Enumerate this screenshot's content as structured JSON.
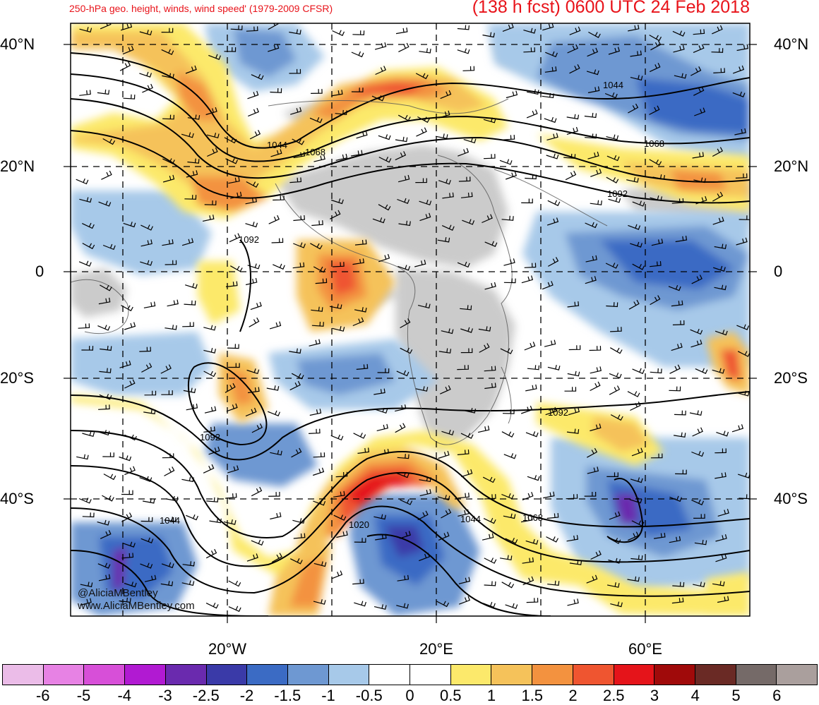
{
  "title": {
    "left": "250-hPa geo. height, winds, wind speed' (1979-2009 CFSR)",
    "right": "(138 h fcst) 0600 UTC 24 Feb 2018"
  },
  "latitude_labels": [
    "40°N",
    "20°N",
    "0",
    "20°S",
    "40°S"
  ],
  "longitude_labels": [
    "20°W",
    "20°E",
    "60°E"
  ],
  "contour_labels": [
    "1044",
    "1068",
    "1044",
    "1068",
    "1092",
    "1092",
    "1092",
    "1092",
    "1044",
    "1020",
    "1044",
    "1068"
  ],
  "watermark": [
    "@AliciaMBentley",
    "www.AliciaMBentley.com"
  ],
  "colorbar": {
    "labels": [
      "-6",
      "-5",
      "-4",
      "-3",
      "-2.5",
      "-2",
      "-1.5",
      "-1",
      "-0.5",
      "0",
      "0.5",
      "1",
      "1.5",
      "2",
      "2.5",
      "3",
      "4",
      "5",
      "6"
    ],
    "colors": [
      "#ebbce8",
      "#e782e4",
      "#d74fd8",
      "#b11ad2",
      "#6a2aae",
      "#3a3aa8",
      "#3b6bc4",
      "#6e98d2",
      "#a7c9e9",
      "#ffffff",
      "#ffffff",
      "#fce96b",
      "#f5c25a",
      "#f3923f",
      "#ef5530",
      "#e5141a",
      "#a00a0a",
      "#6a2a25",
      "#756a68",
      "#aa9f9d"
    ]
  },
  "colors": {
    "title": "#e8131a",
    "land_gray": "#c2c2c2",
    "ocean_white": "#ffffff"
  }
}
